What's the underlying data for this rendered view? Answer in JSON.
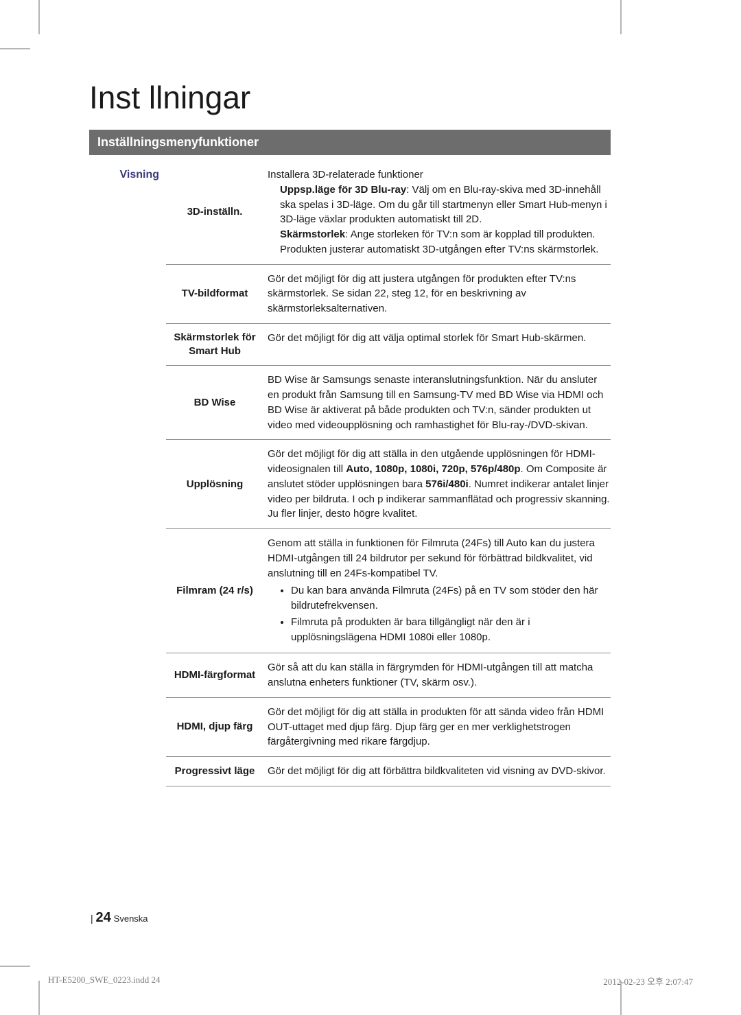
{
  "title": "Inst llningar",
  "section_header": "Inställningsmenyfunktioner",
  "category": "Visning",
  "rows": [
    {
      "label": "3D-inställn.",
      "desc_html": "Installera 3D-relaterade funktioner<div class='indent'><span class='bold'>Uppsp.läge för 3D Blu-ray</span>: Välj om en Blu-ray-skiva med 3D-innehåll ska spelas i 3D-läge. Om du går till startmenyn eller Smart Hub-menyn i 3D-läge växlar produkten automatiskt till 2D.<br><span class='bold'>Skärmstorlek</span>: Ange storleken för TV:n som är kopplad till produkten. Produkten justerar automatiskt 3D-utgången efter TV:ns skärmstorlek.</div>"
    },
    {
      "label": "TV-bildformat",
      "desc_html": "Gör det möjligt för dig att justera utgången för produkten efter TV:ns skärmstorlek. Se sidan 22, steg 12, för en beskrivning av skärmstorleksalternativen."
    },
    {
      "label": "Skärmstorlek för Smart Hub",
      "desc_html": "Gör det möjligt för dig att välja optimal storlek för Smart Hub-skärmen."
    },
    {
      "label": "BD Wise",
      "desc_html": "BD Wise är Samsungs senaste interanslutningsfunktion. När du ansluter en produkt från Samsung till en Samsung-TV med BD Wise via HDMI och BD Wise är aktiverat på både produkten och TV:n, sänder produkten ut video med videoupplösning och ramhastighet för Blu-ray-/DVD-skivan."
    },
    {
      "label": "Upplösning",
      "desc_html": "Gör det möjligt för dig att ställa in den utgående upplösningen för HDMI-videosignalen till <span class='bold'>Auto, 1080p, 1080i, 720p, 576p/480p</span>. Om Composite är anslutet stöder upplösningen bara <span class='bold'>576i/480i</span>. Numret indikerar antalet linjer video per bildruta. I och p indikerar sammanflätad och progressiv skanning. Ju fler linjer, desto högre kvalitet."
    },
    {
      "label": "Filmram (24 r/s)",
      "desc_html": "Genom att ställa in funktionen för Filmruta (24Fs) till Auto kan du justera HDMI-utgången till 24 bildrutor per sekund för förbättrad bildkvalitet, vid anslutning till en 24Fs-kompatibel TV.<ul><li>Du kan bara använda Filmruta (24Fs) på en TV som stöder den här bildrutefrekvensen.</li><li>Filmruta på produkten är bara tillgängligt när den är i upplösningslägena HDMI 1080i eller 1080p.</li></ul>"
    },
    {
      "label": "HDMI-färgformat",
      "desc_html": "Gör så att du kan ställa in färgrymden för HDMI-utgången till att matcha anslutna enheters funktioner (TV, skärm osv.)."
    },
    {
      "label": "HDMI, djup färg",
      "desc_html": "Gör det möjligt för dig att ställa in produkten för att sända video från HDMI OUT-uttaget med djup färg. Djup färg ger en mer verklighetstrogen färgåtergivning med rikare färgdjup."
    },
    {
      "label": "Progressivt läge",
      "desc_html": "Gör det möjligt för dig att förbättra bildkvaliteten vid visning av DVD-skivor."
    }
  ],
  "footer": {
    "page": "24",
    "lang": "Svenska"
  },
  "meta": {
    "file": "HT-E5200_SWE_0223.indd   24",
    "date": "2012-02-23   오후 2:07:47"
  }
}
